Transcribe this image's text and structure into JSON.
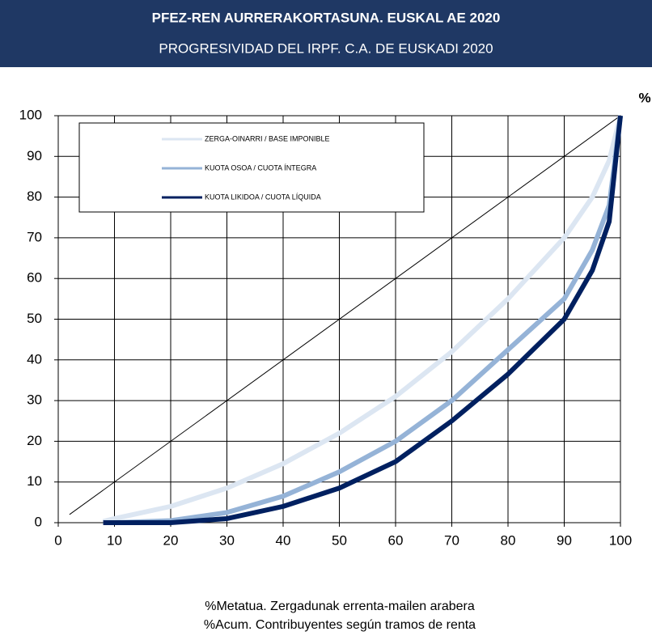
{
  "chart_data": {
    "type": "line",
    "title": "PFEZ-REN AURRERAKORTASUNA. EUSKAL AE 2020",
    "subtitle": "PROGRESIVIDAD DEL IRPF. C.A. DE EUSKADI 2020",
    "y_unit": "%",
    "x_label": [
      "%Metatua. Zergadunak errenta-mailen arabera",
      "%Acum. Contribuyentes según tramos de renta"
    ],
    "x": [
      8,
      10,
      20,
      30,
      40,
      50,
      60,
      70,
      80,
      90,
      95,
      98,
      100
    ],
    "series": [
      {
        "name": "ZERGA-OINARRI / BASE IMPONIBLE",
        "color": "#dce6f2",
        "values": [
          0.3,
          1,
          4,
          8.5,
          14.5,
          22,
          31,
          42,
          55,
          70,
          80,
          89,
          100
        ]
      },
      {
        "name": "KUOTA OSOA / CUOTA ÍNTEGRA",
        "color": "#95b3d7",
        "values": [
          0,
          0,
          0.5,
          2.5,
          6.5,
          12.5,
          20,
          30,
          42.5,
          55,
          67,
          78,
          100
        ]
      },
      {
        "name": "KUOTA LIKIDOA / CUOTA LÍQUIDA",
        "color": "#002060",
        "values": [
          0,
          0,
          0,
          1,
          4,
          8.5,
          15,
          25,
          36.5,
          50,
          62,
          74,
          100
        ]
      }
    ],
    "diagonal": {
      "x": [
        2,
        100
      ],
      "values": [
        2,
        100
      ],
      "color": "#000000"
    },
    "xlim": [
      0,
      100
    ],
    "xticks": [
      0,
      10,
      20,
      30,
      40,
      50,
      60,
      70,
      80,
      90,
      100
    ],
    "ylim": [
      0,
      100
    ],
    "yticks": [
      0,
      10,
      20,
      30,
      40,
      50,
      60,
      70,
      80,
      90,
      100
    ],
    "grid": true,
    "legend": "upper left"
  }
}
